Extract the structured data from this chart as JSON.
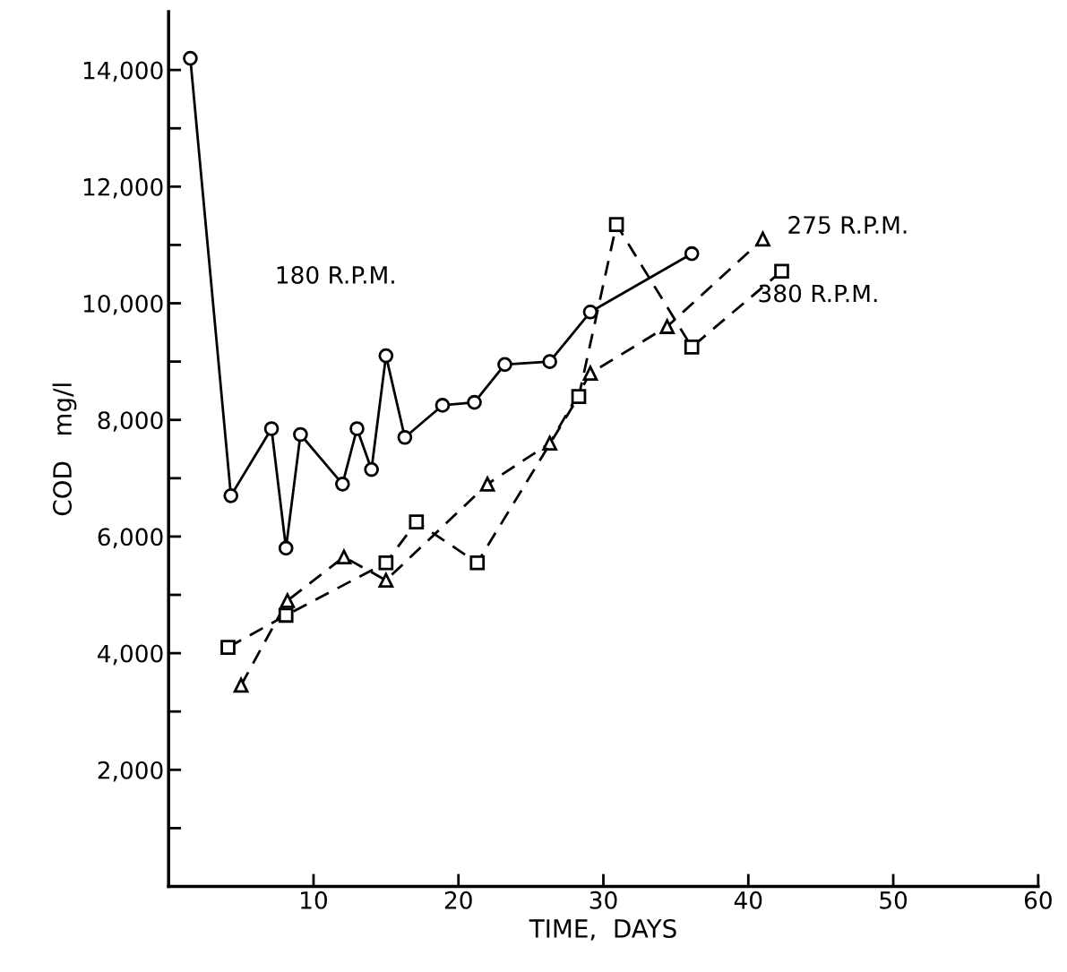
{
  "chart_data": {
    "type": "line",
    "xlabel": "TIME,  DAYS",
    "ylabel": "COD   mg/l",
    "xlim": [
      0,
      60
    ],
    "xticks": [
      10,
      20,
      30,
      40,
      50,
      60
    ],
    "ylim": [
      0,
      15000
    ],
    "yticks": [
      {
        "value": 1000,
        "label": null
      },
      {
        "value": 2000,
        "label": "2,000"
      },
      {
        "value": 3000,
        "label": null
      },
      {
        "value": 4000,
        "label": "4,000"
      },
      {
        "value": 5000,
        "label": null
      },
      {
        "value": 6000,
        "label": "6,000"
      },
      {
        "value": 7000,
        "label": null
      },
      {
        "value": 8000,
        "label": "8,000"
      },
      {
        "value": 9000,
        "label": null
      },
      {
        "value": 10000,
        "label": "10,000"
      },
      {
        "value": 11000,
        "label": null
      },
      {
        "value": 12000,
        "label": "12,000"
      },
      {
        "value": 13000,
        "label": null
      },
      {
        "value": 14000,
        "label": "14,000"
      }
    ],
    "grid": false,
    "legend": false,
    "series": [
      {
        "name": "180 R.P.M.",
        "color": "#000000",
        "marker": "circle",
        "line_style": "solid",
        "x": [
          1.5,
          4.3,
          7.1,
          8.1,
          9.1,
          12.0,
          13.0,
          14.0,
          15.0,
          16.3,
          18.9,
          21.1,
          23.2,
          26.3,
          29.1,
          36.1
        ],
        "values": [
          14200,
          6700,
          7850,
          5800,
          7750,
          6900,
          7850,
          7150,
          9100,
          7700,
          8250,
          8300,
          8950,
          9000,
          9850,
          10850
        ]
      },
      {
        "name": "275 R.P.M.",
        "color": "#000000",
        "marker": "triangle",
        "line_style": "dashed",
        "x": [
          5.0,
          8.2,
          12.1,
          15.0,
          22.0,
          26.3,
          29.1,
          34.4,
          41.0
        ],
        "values": [
          3450,
          4900,
          5650,
          5250,
          6900,
          7600,
          8800,
          9600,
          11100
        ]
      },
      {
        "name": "380 R.P.M.",
        "color": "#000000",
        "marker": "square",
        "line_style": "dashed",
        "x": [
          4.1,
          8.1,
          15.0,
          17.1,
          21.3,
          28.3,
          30.9,
          36.1,
          42.3
        ],
        "values": [
          4100,
          4650,
          5550,
          6250,
          5550,
          8400,
          11350,
          9250,
          10550
        ]
      }
    ]
  }
}
